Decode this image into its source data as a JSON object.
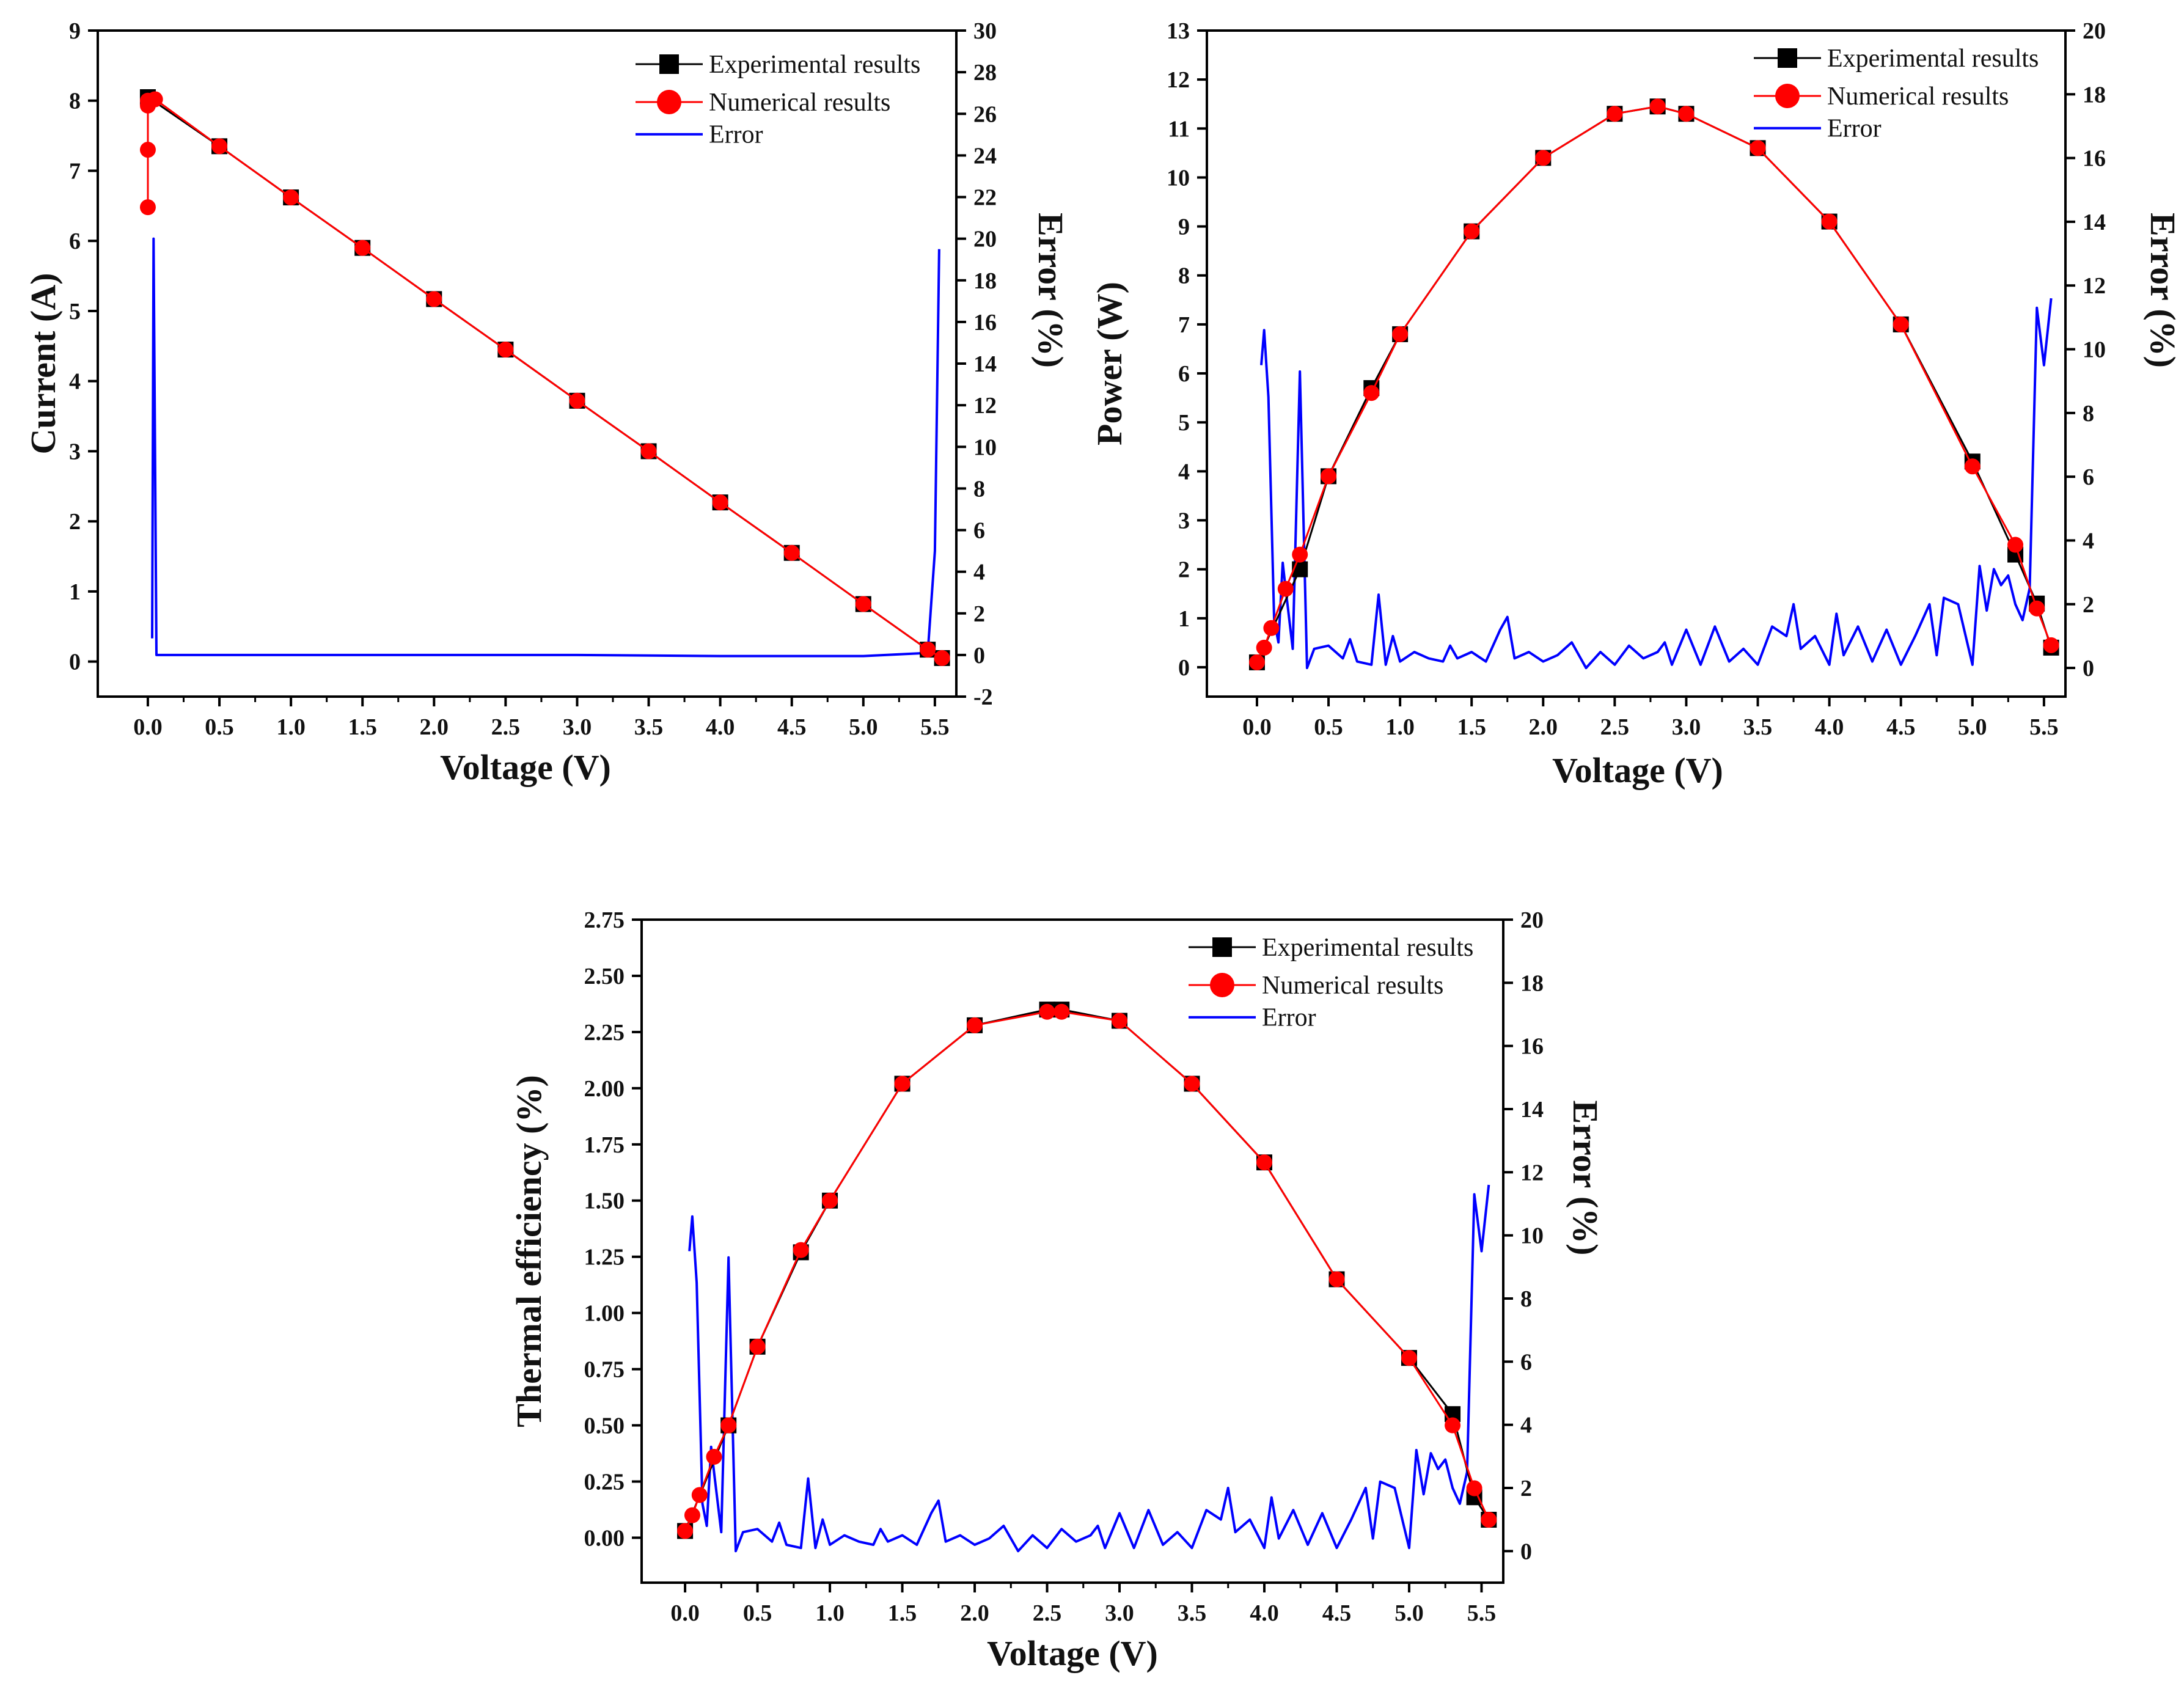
{
  "colors": {
    "experimental": "#000000",
    "numerical": "#ff0000",
    "error": "#0000ff",
    "axis": "#000000"
  },
  "chart_data": [
    {
      "id": "current",
      "type": "line",
      "xlabel": "Voltage (V)",
      "ylabel": "Current (A)",
      "y2label": "Error (%)",
      "xlim": [
        -0.35,
        5.65
      ],
      "ylim": [
        -0.5,
        9
      ],
      "y2lim": [
        -2,
        30
      ],
      "xticks": [
        0.0,
        0.5,
        1.0,
        1.5,
        2.0,
        2.5,
        3.0,
        3.5,
        4.0,
        4.5,
        5.0,
        5.5
      ],
      "xtick_labels": [
        "0.0",
        "0.5",
        "1.0",
        "1.5",
        "2.0",
        "2.5",
        "3.0",
        "3.5",
        "4.0",
        "4.5",
        "5.0",
        "5.5"
      ],
      "yticks": [
        0,
        1,
        2,
        3,
        4,
        5,
        6,
        7,
        8,
        9
      ],
      "ytick_labels": [
        "0",
        "1",
        "2",
        "3",
        "4",
        "5",
        "6",
        "7",
        "8",
        "9"
      ],
      "y2ticks": [
        -2,
        0,
        2,
        4,
        6,
        8,
        10,
        12,
        14,
        16,
        18,
        20,
        22,
        24,
        26,
        28,
        30
      ],
      "y2tick_labels": [
        "-2",
        "0",
        "2",
        "4",
        "6",
        "8",
        "10",
        "12",
        "14",
        "16",
        "18",
        "20",
        "22",
        "24",
        "26",
        "28",
        "30"
      ],
      "legend_position": "top-right",
      "legend": [
        "Experimental results",
        "Numerical results",
        "Error"
      ],
      "series": [
        {
          "name": "Experimental results",
          "x": [
            0.0,
            0.5,
            1.0,
            1.5,
            2.0,
            2.5,
            3.0,
            3.5,
            4.0,
            4.5,
            5.0,
            5.45,
            5.55
          ],
          "y": [
            8.05,
            7.35,
            6.62,
            5.9,
            5.17,
            4.45,
            3.72,
            3.0,
            2.27,
            1.55,
            0.82,
            0.17,
            0.05
          ]
        },
        {
          "name": "Numerical results",
          "x": [
            0.0,
            0.0,
            0.0,
            0.0,
            0.05,
            0.5,
            1.0,
            1.5,
            2.0,
            2.5,
            3.0,
            3.5,
            4.0,
            4.5,
            5.0,
            5.45,
            5.55
          ],
          "y": [
            6.48,
            7.3,
            7.93,
            8.0,
            8.02,
            7.35,
            6.62,
            5.9,
            5.17,
            4.45,
            3.72,
            3.0,
            2.27,
            1.55,
            0.82,
            0.17,
            0.05
          ]
        },
        {
          "name": "Error",
          "axis": "right",
          "x": [
            0.03,
            0.04,
            0.06,
            0.5,
            2.0,
            3.0,
            4.0,
            5.0,
            5.45,
            5.5,
            5.53
          ],
          "y": [
            0.8,
            20.0,
            0.0,
            0.0,
            0.0,
            0.0,
            -0.05,
            -0.05,
            0.1,
            5.0,
            19.5
          ]
        }
      ]
    },
    {
      "id": "power",
      "type": "line",
      "xlabel": "Voltage (V)",
      "ylabel": "Power (W)",
      "y2label": "Error (%)",
      "xlim": [
        -0.35,
        5.65
      ],
      "ylim": [
        -0.6,
        13
      ],
      "y2lim": [
        -0.9,
        20
      ],
      "xticks": [
        0.0,
        0.5,
        1.0,
        1.5,
        2.0,
        2.5,
        3.0,
        3.5,
        4.0,
        4.5,
        5.0,
        5.5
      ],
      "xtick_labels": [
        "0.0",
        "0.5",
        "1.0",
        "1.5",
        "2.0",
        "2.5",
        "3.0",
        "3.5",
        "4.0",
        "4.5",
        "5.0",
        "5.5"
      ],
      "yticks": [
        0,
        1,
        2,
        3,
        4,
        5,
        6,
        7,
        8,
        9,
        10,
        11,
        12,
        13
      ],
      "ytick_labels": [
        "0",
        "1",
        "2",
        "3",
        "4",
        "5",
        "6",
        "7",
        "8",
        "9",
        "10",
        "11",
        "12",
        "13"
      ],
      "y2ticks": [
        0,
        2,
        4,
        6,
        8,
        10,
        12,
        14,
        16,
        18,
        20
      ],
      "y2tick_labels": [
        "0",
        "2",
        "4",
        "6",
        "8",
        "10",
        "12",
        "14",
        "16",
        "18",
        "20"
      ],
      "legend_position": "top-right",
      "legend": [
        "Experimental results",
        "Numerical results",
        "Error"
      ],
      "series": [
        {
          "name": "Experimental results",
          "x": [
            0.0,
            0.3,
            0.5,
            0.8,
            1.0,
            1.5,
            2.0,
            2.5,
            2.8,
            3.0,
            3.5,
            4.0,
            4.5,
            5.0,
            5.3,
            5.45,
            5.55
          ],
          "y": [
            0.1,
            2.0,
            3.9,
            5.7,
            6.8,
            8.9,
            10.4,
            11.3,
            11.45,
            11.3,
            10.6,
            9.1,
            7.0,
            4.2,
            2.3,
            1.3,
            0.4
          ]
        },
        {
          "name": "Numerical results",
          "x": [
            0.0,
            0.05,
            0.1,
            0.2,
            0.3,
            0.5,
            0.8,
            1.0,
            1.5,
            2.0,
            2.5,
            2.8,
            3.0,
            3.5,
            4.0,
            4.5,
            5.0,
            5.3,
            5.45,
            5.55
          ],
          "y": [
            0.1,
            0.4,
            0.8,
            1.6,
            2.3,
            3.9,
            5.6,
            6.8,
            8.9,
            10.4,
            11.3,
            11.45,
            11.3,
            10.6,
            9.1,
            7.0,
            4.1,
            2.5,
            1.2,
            0.45
          ]
        },
        {
          "name": "Error",
          "axis": "right",
          "x": [
            0.03,
            0.05,
            0.08,
            0.12,
            0.15,
            0.18,
            0.2,
            0.25,
            0.3,
            0.35,
            0.4,
            0.5,
            0.6,
            0.65,
            0.7,
            0.8,
            0.85,
            0.9,
            0.95,
            1.0,
            1.1,
            1.2,
            1.3,
            1.35,
            1.4,
            1.5,
            1.6,
            1.7,
            1.75,
            1.8,
            1.9,
            2.0,
            2.1,
            2.2,
            2.3,
            2.4,
            2.5,
            2.6,
            2.7,
            2.8,
            2.85,
            2.9,
            3.0,
            3.1,
            3.2,
            3.3,
            3.4,
            3.5,
            3.6,
            3.7,
            3.75,
            3.8,
            3.9,
            4.0,
            4.05,
            4.1,
            4.2,
            4.3,
            4.4,
            4.5,
            4.6,
            4.7,
            4.75,
            4.8,
            4.9,
            5.0,
            5.05,
            5.1,
            5.15,
            5.2,
            5.25,
            5.3,
            5.35,
            5.4,
            5.45,
            5.5,
            5.55
          ],
          "y": [
            9.5,
            10.6,
            8.5,
            1.5,
            0.8,
            3.3,
            2.5,
            0.6,
            9.3,
            0.0,
            0.6,
            0.7,
            0.3,
            0.9,
            0.2,
            0.1,
            2.3,
            0.1,
            1.0,
            0.2,
            0.5,
            0.3,
            0.2,
            0.7,
            0.3,
            0.5,
            0.2,
            1.2,
            1.6,
            0.3,
            0.5,
            0.2,
            0.4,
            0.8,
            0.0,
            0.5,
            0.1,
            0.7,
            0.3,
            0.5,
            0.8,
            0.1,
            1.2,
            0.1,
            1.3,
            0.2,
            0.6,
            0.1,
            1.3,
            1.0,
            2.0,
            0.6,
            1.0,
            0.1,
            1.7,
            0.4,
            1.3,
            0.2,
            1.2,
            0.1,
            1.0,
            2.0,
            0.4,
            2.2,
            2.0,
            0.1,
            3.2,
            1.8,
            3.1,
            2.6,
            2.9,
            2.0,
            1.5,
            2.5,
            11.3,
            9.5,
            11.6
          ]
        }
      ]
    },
    {
      "id": "thermal",
      "type": "line",
      "xlabel": "Voltage (V)",
      "ylabel": "Thermal efficiency (%)",
      "y2label": "Error (%)",
      "xlim": [
        -0.3,
        5.65
      ],
      "ylim": [
        -0.2,
        2.75
      ],
      "y2lim": [
        -1.0,
        20
      ],
      "xticks": [
        0.0,
        0.5,
        1.0,
        1.5,
        2.0,
        2.5,
        3.0,
        3.5,
        4.0,
        4.5,
        5.0,
        5.5
      ],
      "xtick_labels": [
        "0.0",
        "0.5",
        "1.0",
        "1.5",
        "2.0",
        "2.5",
        "3.0",
        "3.5",
        "4.0",
        "4.5",
        "5.0",
        "5.5"
      ],
      "yticks": [
        0.0,
        0.25,
        0.5,
        0.75,
        1.0,
        1.25,
        1.5,
        1.75,
        2.0,
        2.25,
        2.5,
        2.75
      ],
      "ytick_labels": [
        "0.00",
        "0.25",
        "0.50",
        "0.75",
        "1.00",
        "1.25",
        "1.50",
        "1.75",
        "2.00",
        "2.25",
        "2.50",
        "2.75"
      ],
      "y2ticks": [
        0,
        2,
        4,
        6,
        8,
        10,
        12,
        14,
        16,
        18,
        20
      ],
      "y2tick_labels": [
        "0",
        "2",
        "4",
        "6",
        "8",
        "10",
        "12",
        "14",
        "16",
        "18",
        "20"
      ],
      "legend_position": "top-right",
      "legend": [
        "Experimental results",
        "Numerical results",
        "Error"
      ],
      "series": [
        {
          "name": "Experimental results",
          "x": [
            0.0,
            0.3,
            0.5,
            0.8,
            1.0,
            1.5,
            2.0,
            2.5,
            2.6,
            3.0,
            3.5,
            4.0,
            4.5,
            5.0,
            5.3,
            5.45,
            5.55
          ],
          "y": [
            0.03,
            0.5,
            0.85,
            1.27,
            1.5,
            2.02,
            2.28,
            2.35,
            2.35,
            2.3,
            2.02,
            1.67,
            1.15,
            0.8,
            0.55,
            0.18,
            0.08
          ]
        },
        {
          "name": "Numerical results",
          "x": [
            0.0,
            0.05,
            0.1,
            0.2,
            0.3,
            0.5,
            0.8,
            1.0,
            1.5,
            2.0,
            2.5,
            2.6,
            3.0,
            3.5,
            4.0,
            4.5,
            5.0,
            5.3,
            5.45,
            5.55
          ],
          "y": [
            0.03,
            0.1,
            0.19,
            0.36,
            0.5,
            0.85,
            1.28,
            1.5,
            2.02,
            2.28,
            2.34,
            2.34,
            2.3,
            2.02,
            1.67,
            1.15,
            0.8,
            0.5,
            0.22,
            0.08
          ]
        },
        {
          "name": "Error",
          "axis": "right",
          "x": [
            0.03,
            0.05,
            0.08,
            0.12,
            0.15,
            0.18,
            0.2,
            0.25,
            0.3,
            0.35,
            0.4,
            0.5,
            0.6,
            0.65,
            0.7,
            0.8,
            0.85,
            0.9,
            0.95,
            1.0,
            1.1,
            1.2,
            1.3,
            1.35,
            1.4,
            1.5,
            1.6,
            1.7,
            1.75,
            1.8,
            1.9,
            2.0,
            2.1,
            2.2,
            2.3,
            2.4,
            2.5,
            2.6,
            2.7,
            2.8,
            2.85,
            2.9,
            3.0,
            3.1,
            3.2,
            3.3,
            3.4,
            3.5,
            3.6,
            3.7,
            3.75,
            3.8,
            3.9,
            4.0,
            4.05,
            4.1,
            4.2,
            4.3,
            4.4,
            4.5,
            4.6,
            4.7,
            4.75,
            4.8,
            4.9,
            5.0,
            5.05,
            5.1,
            5.15,
            5.2,
            5.25,
            5.3,
            5.35,
            5.4,
            5.45,
            5.5,
            5.55
          ],
          "y": [
            9.5,
            10.6,
            8.5,
            1.5,
            0.8,
            3.3,
            2.5,
            0.6,
            9.3,
            0.0,
            0.6,
            0.7,
            0.3,
            0.9,
            0.2,
            0.1,
            2.3,
            0.1,
            1.0,
            0.2,
            0.5,
            0.3,
            0.2,
            0.7,
            0.3,
            0.5,
            0.2,
            1.2,
            1.6,
            0.3,
            0.5,
            0.2,
            0.4,
            0.8,
            0.0,
            0.5,
            0.1,
            0.7,
            0.3,
            0.5,
            0.8,
            0.1,
            1.2,
            0.1,
            1.3,
            0.2,
            0.6,
            0.1,
            1.3,
            1.0,
            2.0,
            0.6,
            1.0,
            0.1,
            1.7,
            0.4,
            1.3,
            0.2,
            1.2,
            0.1,
            1.0,
            2.0,
            0.4,
            2.2,
            2.0,
            0.1,
            3.2,
            1.8,
            3.1,
            2.6,
            2.9,
            2.0,
            1.5,
            2.5,
            11.3,
            9.5,
            11.6
          ]
        }
      ]
    }
  ]
}
